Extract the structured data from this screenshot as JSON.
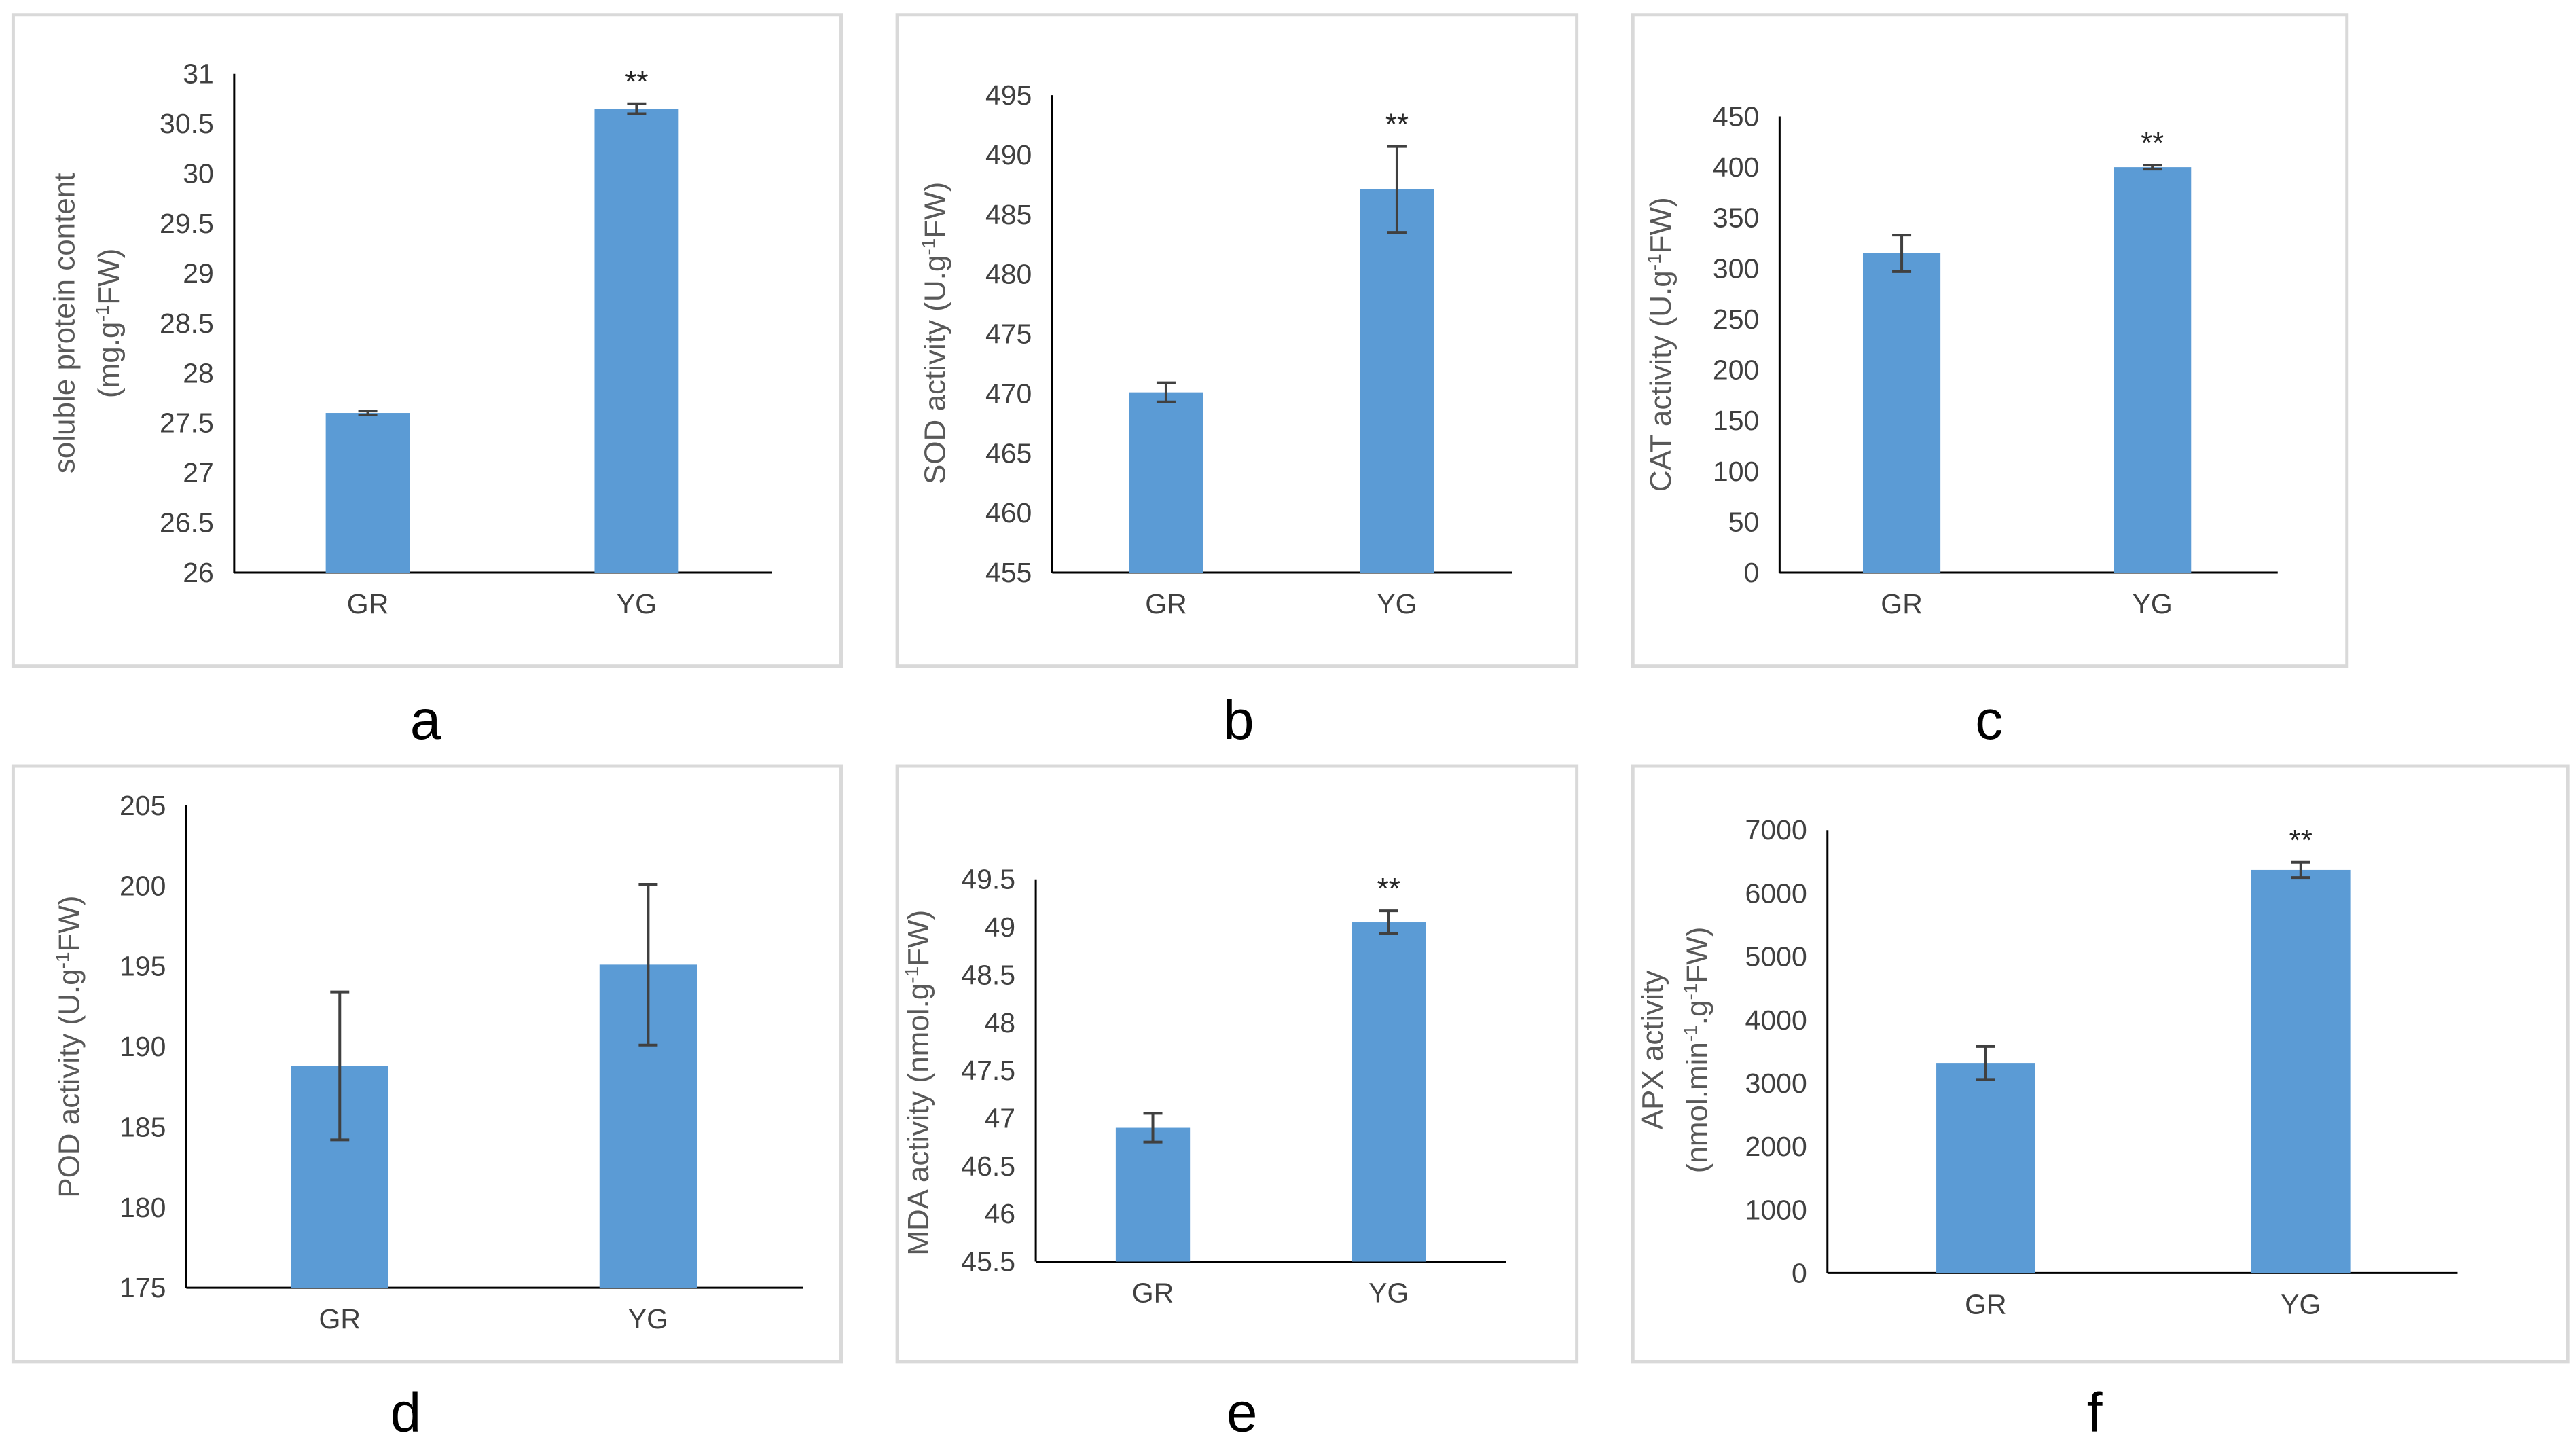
{
  "figure": {
    "background": "#ffffff",
    "bar_color": "#5b9bd5",
    "frame_color": "#d9d9d9"
  },
  "chart_data": [
    {
      "panel": "a",
      "type": "bar",
      "categories": [
        "GR",
        "YG"
      ],
      "values": [
        27.6,
        30.65
      ],
      "errors": [
        0.02,
        0.05
      ],
      "significance": [
        "",
        "**"
      ],
      "ylabel_lines": [
        "soluble protein content",
        "(mg.g-1FW)"
      ],
      "ylim": [
        26,
        31
      ],
      "ticks": [
        26,
        26.5,
        27,
        27.5,
        28,
        28.5,
        29,
        29.5,
        30,
        30.5,
        31
      ],
      "tick_labels": [
        "26",
        "26.5",
        "27",
        "27.5",
        "28",
        "28.5",
        "29",
        "29.5",
        "30",
        "30.5",
        "31"
      ]
    },
    {
      "panel": "b",
      "type": "bar",
      "categories": [
        "GR",
        "YG"
      ],
      "values": [
        470.1,
        487.1
      ],
      "errors": [
        0.8,
        3.6
      ],
      "significance": [
        "",
        "**"
      ],
      "ylabel_lines": [
        "SOD activity (U.g-1FW)"
      ],
      "ylim": [
        455,
        495
      ],
      "ticks": [
        455,
        460,
        465,
        470,
        475,
        480,
        485,
        490,
        495
      ],
      "tick_labels": [
        "455",
        "460",
        "465",
        "470",
        "475",
        "480",
        "485",
        "490",
        "495"
      ]
    },
    {
      "panel": "c",
      "type": "bar",
      "categories": [
        "GR",
        "YG"
      ],
      "values": [
        315,
        400
      ],
      "errors": [
        18,
        2
      ],
      "significance": [
        "",
        "**"
      ],
      "ylabel_lines": [
        "CAT activity (U.g-1FW)"
      ],
      "ylim": [
        0,
        450
      ],
      "ticks": [
        0,
        50,
        100,
        150,
        200,
        250,
        300,
        350,
        400,
        450
      ],
      "tick_labels": [
        "0",
        "50",
        "100",
        "150",
        "200",
        "250",
        "300",
        "350",
        "400",
        "450"
      ]
    },
    {
      "panel": "d",
      "type": "bar",
      "categories": [
        "GR",
        "YG"
      ],
      "values": [
        188.8,
        195.1
      ],
      "errors": [
        4.6,
        5.0
      ],
      "significance": [
        "",
        ""
      ],
      "ylabel_lines": [
        "POD activity (U.g-1FW)"
      ],
      "ylim": [
        175,
        205
      ],
      "ticks": [
        175,
        180,
        185,
        190,
        195,
        200,
        205
      ],
      "tick_labels": [
        "175",
        "180",
        "185",
        "190",
        "195",
        "200",
        "205"
      ]
    },
    {
      "panel": "e",
      "type": "bar",
      "categories": [
        "GR",
        "YG"
      ],
      "values": [
        46.9,
        49.05
      ],
      "errors": [
        0.15,
        0.12
      ],
      "significance": [
        "",
        "**"
      ],
      "ylabel_lines": [
        "MDA activity (nmol.g-1FW)"
      ],
      "ylim": [
        45.5,
        49.5
      ],
      "ticks": [
        45.5,
        46,
        46.5,
        47,
        47.5,
        48,
        48.5,
        49,
        49.5
      ],
      "tick_labels": [
        "45.5",
        "46",
        "46.5",
        "47",
        "47.5",
        "48",
        "48.5",
        "49",
        "49.5"
      ]
    },
    {
      "panel": "f",
      "type": "bar",
      "categories": [
        "GR",
        "YG"
      ],
      "values": [
        3320,
        6370
      ],
      "errors": [
        260,
        120
      ],
      "significance": [
        "",
        "**"
      ],
      "ylabel_lines": [
        "APX activity",
        "(nmol.min-1.g-1FW)"
      ],
      "ylim": [
        0,
        7000
      ],
      "ticks": [
        0,
        1000,
        2000,
        3000,
        4000,
        5000,
        6000,
        7000
      ],
      "tick_labels": [
        "0",
        "1000",
        "2000",
        "3000",
        "4000",
        "5000",
        "6000",
        "7000"
      ]
    }
  ]
}
